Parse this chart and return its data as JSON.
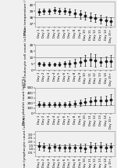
{
  "days": [
    "Day 1",
    "Day 2",
    "Day 3",
    "Day 4",
    "Day 5",
    "Day 6",
    "Day 7",
    "Day 8",
    "Day 9",
    "Day 10",
    "Day 11",
    "Day 12",
    "Day 13",
    "Day 14",
    "Day 15+"
  ],
  "panel1": {
    "ylabel": "Mean temperature (°C)",
    "means": [
      38.9,
      39.0,
      39.0,
      39.1,
      39.0,
      39.0,
      38.9,
      38.7,
      38.5,
      38.3,
      38.1,
      37.9,
      37.7,
      37.5,
      37.4
    ],
    "sd": [
      0.5,
      0.45,
      0.45,
      0.5,
      0.5,
      0.5,
      0.55,
      0.6,
      0.65,
      0.65,
      0.65,
      0.65,
      0.65,
      0.65,
      0.65
    ],
    "hline": 38.0,
    "ylim": [
      36.5,
      40.5
    ],
    "yticks": [
      37.0,
      38.0,
      39.0,
      40.0
    ]
  },
  "panel2": {
    "ylabel": "Mean leukocyte cell count (x10⁹/L)",
    "means": [
      5.0,
      4.8,
      4.7,
      4.6,
      4.8,
      4.9,
      5.2,
      5.8,
      6.5,
      7.5,
      8.2,
      7.8,
      6.5,
      6.8,
      7.2
    ],
    "sd": [
      1.5,
      1.4,
      1.4,
      1.3,
      1.5,
      2.0,
      2.5,
      3.0,
      3.5,
      4.5,
      5.0,
      5.0,
      3.5,
      4.0,
      4.5
    ],
    "hline": 10.0,
    "ylim": [
      0,
      20
    ],
    "yticks": [
      0,
      5,
      10,
      15,
      20
    ]
  },
  "panel3": {
    "ylabel": "Mean platelet count (x10⁹/L)",
    "means": [
      180,
      175,
      170,
      168,
      170,
      175,
      180,
      190,
      205,
      220,
      235,
      245,
      250,
      255,
      270
    ],
    "sd": [
      50,
      48,
      45,
      45,
      48,
      50,
      55,
      60,
      65,
      70,
      75,
      80,
      85,
      90,
      100
    ],
    "hline": 150,
    "ylim": [
      0,
      500
    ],
    "yticks": [
      0,
      100,
      200,
      300,
      400,
      500
    ]
  },
  "panel4": {
    "ylabel": "Mean lymphocyte count (x10⁹/L)",
    "means": [
      1.4,
      1.3,
      1.2,
      1.25,
      1.2,
      1.15,
      1.2,
      1.15,
      1.2,
      1.1,
      1.25,
      1.2,
      1.3,
      1.2,
      1.25
    ],
    "sd": [
      0.5,
      0.5,
      0.5,
      0.5,
      0.45,
      0.5,
      0.5,
      0.5,
      0.5,
      0.6,
      0.7,
      0.6,
      0.6,
      0.55,
      0.55
    ],
    "hline": 1.5,
    "ylim": [
      0,
      3.5
    ],
    "yticks": [
      0.5,
      1.0,
      1.5,
      2.0,
      2.5,
      3.0
    ]
  },
  "bg_color": "#f0f0f0",
  "line_color": "#1a1a1a",
  "hline_color": "#999999",
  "marker": "D",
  "markersize": 1.5,
  "linewidth": 0.6,
  "errorbar_capsize": 1.0,
  "errorbar_linewidth": 0.5,
  "tick_labelsize": 3.0,
  "ylabel_fontsize": 3.2,
  "xtick_labelsize": 2.8
}
